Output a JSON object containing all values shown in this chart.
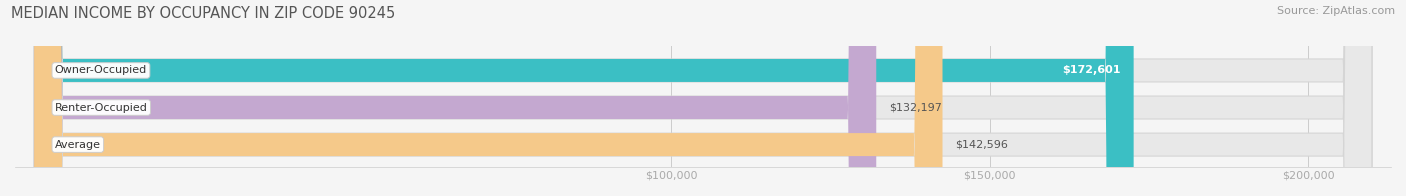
{
  "title": "MEDIAN INCOME BY OCCUPANCY IN ZIP CODE 90245",
  "source": "Source: ZipAtlas.com",
  "categories": [
    "Owner-Occupied",
    "Renter-Occupied",
    "Average"
  ],
  "values": [
    172601,
    132197,
    142596
  ],
  "bar_colors": [
    "#3bbfc4",
    "#c4a8d0",
    "#f5c98a"
  ],
  "value_labels": [
    "$172,601",
    "$132,197",
    "$142,596"
  ],
  "label_inside": [
    true,
    false,
    false
  ],
  "xmin": 0,
  "xmax": 210000,
  "xlim_left": -3000,
  "xlim_right": 213000,
  "xticks": [
    100000,
    150000,
    200000
  ],
  "xtick_labels": [
    "$100,000",
    "$150,000",
    "$200,000"
  ],
  "background_color": "#f5f5f5",
  "bar_bg_color": "#e8e8e8",
  "bar_bg_edge": "#d5d5d5",
  "title_fontsize": 10.5,
  "source_fontsize": 8,
  "tick_fontsize": 8,
  "cat_label_fontsize": 8,
  "val_label_fontsize": 8,
  "figsize": [
    14.06,
    1.96
  ],
  "dpi": 100
}
